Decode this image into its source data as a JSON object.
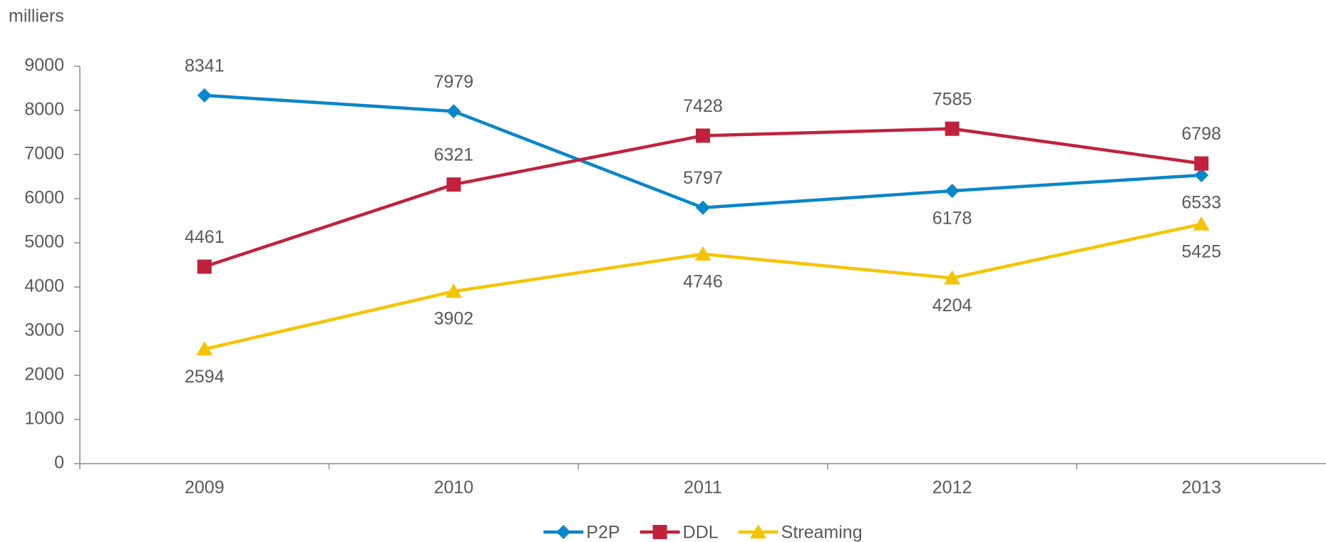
{
  "chart_data": {
    "type": "line",
    "ylabel": "milliers",
    "categories": [
      "2009",
      "2010",
      "2011",
      "2012",
      "2013"
    ],
    "series": [
      {
        "name": "P2P",
        "color": "#0a86c9",
        "marker": "diamond",
        "values": [
          8341,
          7979,
          5797,
          6178,
          6533
        ]
      },
      {
        "name": "DDL",
        "color": "#c0223c",
        "marker": "square",
        "values": [
          4461,
          6321,
          7428,
          7585,
          6798
        ]
      },
      {
        "name": "Streaming",
        "color": "#f5c400",
        "marker": "triangle",
        "values": [
          2594,
          3902,
          4746,
          4204,
          5425
        ]
      }
    ],
    "ylim": [
      0,
      9000
    ],
    "yticks": [
      0,
      1000,
      2000,
      3000,
      4000,
      5000,
      6000,
      7000,
      8000,
      9000
    ],
    "grid": false,
    "legend": "bottom"
  }
}
